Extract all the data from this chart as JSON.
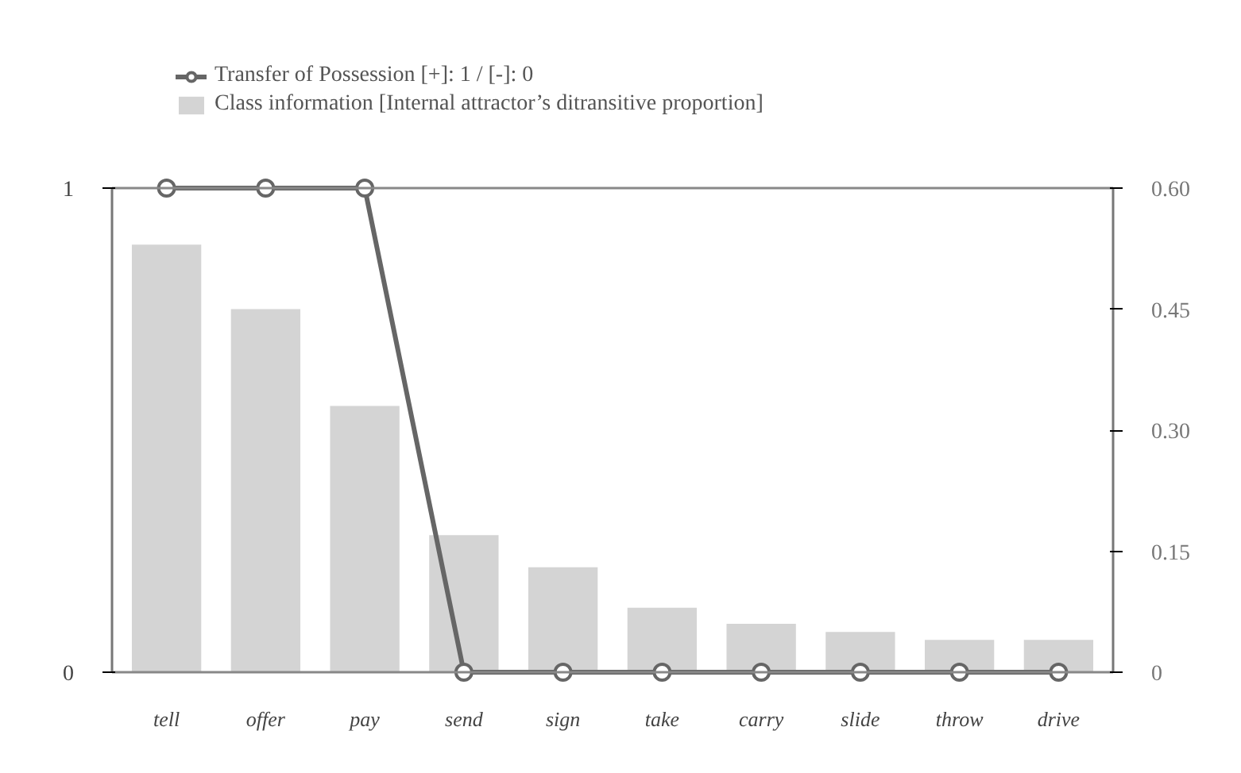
{
  "chart_data": {
    "type": "bar",
    "categories": [
      "tell",
      "offer",
      "pay",
      "send",
      "sign",
      "take",
      "carry",
      "slide",
      "throw",
      "drive"
    ],
    "series": [
      {
        "name": "Transfer of Possession [+]: 1 / [-]: 0",
        "type": "line",
        "color": "#666666",
        "values": [
          1,
          1,
          1,
          0,
          0,
          0,
          0,
          0,
          0,
          0
        ]
      },
      {
        "name": "Class information [Internal attractor’s ditransitive proportion]",
        "axis": "y2",
        "color": "#d4d4d4",
        "values": [
          0.53,
          0.45,
          0.33,
          0.17,
          0.13,
          0.08,
          0.06,
          0.05,
          0.04,
          0.04
        ]
      }
    ],
    "ylim": [
      0,
      1
    ],
    "yticks": [
      0,
      1
    ],
    "y2lim": [
      0,
      0.6
    ],
    "y2ticks": [
      0,
      0.15,
      {
        "value": 0.3,
        "label": "0.30"
      },
      0.45,
      {
        "value": 0.6,
        "label": "0.60"
      }
    ],
    "marker": "circle",
    "grid": false,
    "legend": "top left"
  }
}
